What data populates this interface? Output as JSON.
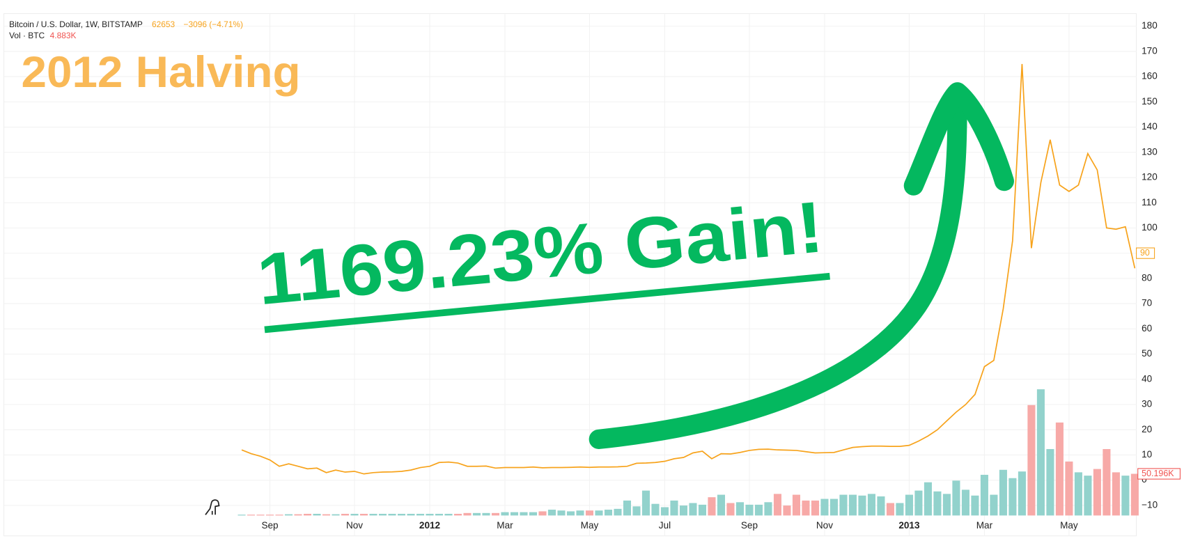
{
  "header": {
    "symbol": "Bitcoin / U.S. Dollar, 1W, BITSTAMP",
    "price": "62653",
    "change": "−3096 (−4.71%)",
    "volume_name": "Vol · BTC",
    "volume": "4.883K"
  },
  "chart_data": {
    "type": "line",
    "annotations": [
      "2012 Halving",
      "1169.23% Gain!"
    ],
    "categories": [
      null,
      null,
      null,
      "Sep",
      null,
      null,
      null,
      null,
      null,
      null,
      null,
      null,
      "Nov",
      null,
      null,
      null,
      null,
      null,
      null,
      null,
      "2012",
      null,
      null,
      null,
      null,
      null,
      null,
      null,
      "Mar",
      null,
      null,
      null,
      null,
      null,
      null,
      null,
      null,
      "May",
      null,
      null,
      null,
      null,
      null,
      null,
      null,
      "Jul",
      null,
      null,
      null,
      null,
      null,
      null,
      null,
      null,
      "Sep",
      null,
      null,
      null,
      null,
      null,
      null,
      null,
      "Nov",
      null,
      null,
      null,
      null,
      null,
      null,
      null,
      null,
      "2013",
      null,
      null,
      null,
      null,
      null,
      null,
      null,
      "Mar",
      null,
      null,
      null,
      null,
      null,
      null,
      null,
      null,
      "May",
      null,
      null,
      null,
      null,
      null,
      null,
      null
    ],
    "series": [
      {
        "color": "#f7a31c",
        "values": [
          12,
          10.5,
          9.5,
          8,
          5.5,
          6.5,
          5.5,
          4.5,
          4.8,
          3,
          4,
          3.2,
          3.5,
          2.5,
          3,
          3.2,
          3.3,
          3.5,
          4,
          5,
          5.5,
          7,
          7.2,
          6.8,
          5.5,
          5.5,
          5.6,
          4.8,
          5,
          5,
          5,
          5.2,
          4.9,
          5,
          5,
          5.1,
          5.2,
          5.1,
          5.2,
          5.2,
          5.3,
          5.5,
          6.7,
          6.8,
          7,
          7.5,
          8.5,
          9,
          10.8,
          11.5,
          8.5,
          10.5,
          10.4,
          11,
          11.8,
          12.2,
          12.3,
          12,
          11.9,
          11.8,
          11.3,
          10.8,
          10.9,
          11,
          12,
          13,
          13.3,
          13.5,
          13.5,
          13.4,
          13.4,
          13.8,
          15.5,
          17.5,
          20,
          23.5,
          27,
          30,
          34,
          45,
          47.5,
          68,
          95,
          165,
          92,
          118,
          135,
          117,
          114.5,
          117,
          129.5,
          123,
          100,
          99.5,
          100.5,
          84
        ],
        "last_marker": 90
      },
      {
        "type": "bar",
        "up_color": "#92d2cc",
        "down_color": "#f7a9a7",
        "values": [
          1,
          1,
          1,
          1,
          1,
          1.5,
          1.5,
          2,
          2,
          1.5,
          1.5,
          2,
          2,
          2,
          2,
          2,
          2,
          2,
          2,
          2,
          2,
          2,
          2,
          2,
          3,
          3,
          3,
          3,
          4,
          4,
          4,
          4,
          5,
          7,
          6,
          5,
          6,
          6,
          6,
          7,
          8,
          18,
          11,
          30,
          14,
          10,
          18,
          12,
          15,
          13,
          22,
          25,
          15,
          16,
          13,
          13,
          16,
          26,
          12,
          25,
          18,
          18,
          20,
          20,
          25,
          25,
          24,
          26,
          23,
          15,
          15,
          25,
          30,
          40,
          29,
          26,
          42,
          31,
          24,
          49,
          25,
          55,
          45,
          53,
          133,
          152,
          80,
          112,
          65,
          52,
          48,
          56,
          80,
          52,
          48,
          50.196
        ],
        "ylim": [
          0,
          180
        ],
        "last_marker": {
          "value": 50.196,
          "label": "50.196K"
        }
      }
    ],
    "ylim": [
      -14,
      185
    ],
    "yticks": [
      180,
      170,
      160,
      150,
      140,
      130,
      120,
      110,
      100,
      90,
      80,
      70,
      60,
      50,
      40,
      30,
      20,
      10,
      0,
      {
        "value": -10,
        "label": "−10"
      }
    ],
    "grid": true
  }
}
